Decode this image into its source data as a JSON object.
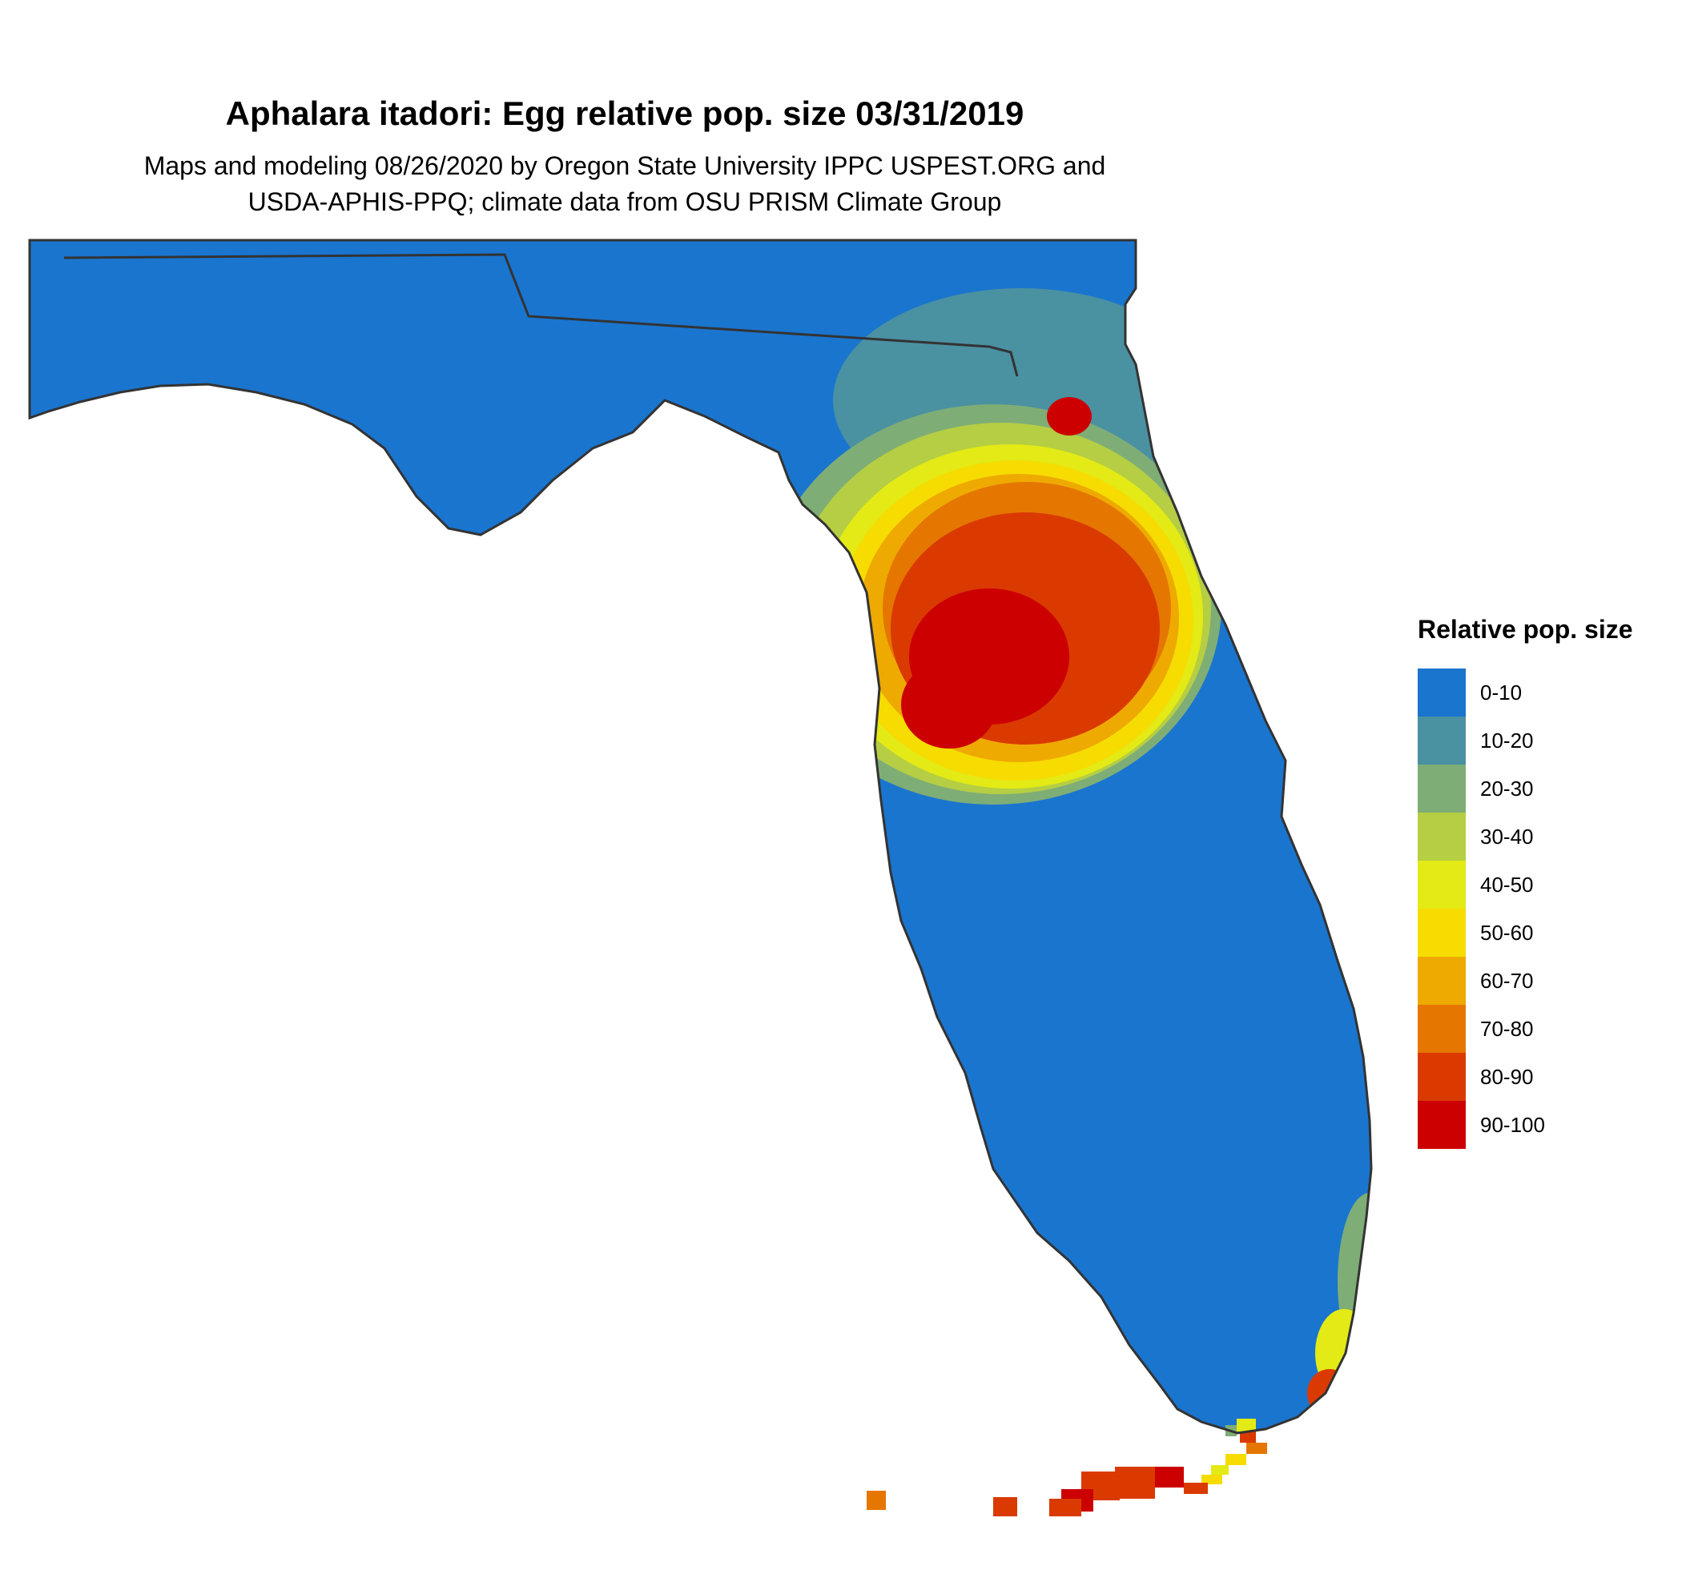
{
  "title": "Aphalara itadori: Egg relative pop. size 03/31/2019",
  "subtitle_line1": "Maps and modeling 08/26/2020 by Oregon State University IPPC USPEST.ORG and",
  "subtitle_line2": "USDA-APHIS-PPQ; climate data from OSU PRISM Climate Group",
  "legend": {
    "title": "Relative pop. size",
    "items": [
      {
        "label": "0-10",
        "color": "#1a75cf"
      },
      {
        "label": "10-20",
        "color": "#4a91a2"
      },
      {
        "label": "20-30",
        "color": "#7fad76"
      },
      {
        "label": "30-40",
        "color": "#b5ce43"
      },
      {
        "label": "40-50",
        "color": "#e3ea15"
      },
      {
        "label": "50-60",
        "color": "#f6dc00"
      },
      {
        "label": "60-70",
        "color": "#eeaa00"
      },
      {
        "label": "70-80",
        "color": "#e57600"
      },
      {
        "label": "80-90",
        "color": "#da3a00"
      },
      {
        "label": "90-100",
        "color": "#cc0000"
      }
    ]
  }
}
